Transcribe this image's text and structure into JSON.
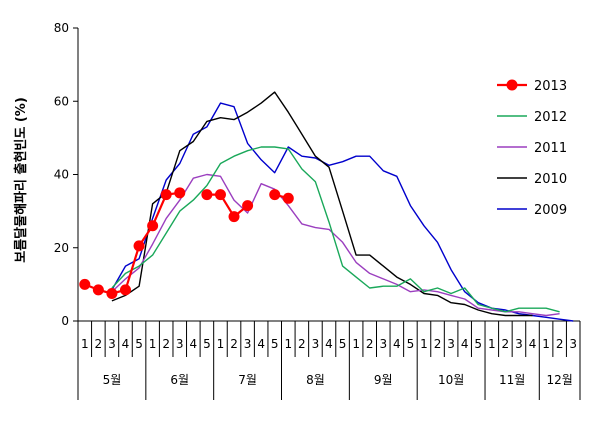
{
  "chart_data": {
    "type": "line",
    "title": "",
    "ylabel": "보름달물해파리 출현빈도 (%)",
    "ylim": [
      0,
      80
    ],
    "yticks": [
      0,
      20,
      40,
      60,
      80
    ],
    "grid": false,
    "legend_position": "right",
    "week_labels": [
      "1",
      "2",
      "3",
      "4",
      "5",
      "1",
      "2",
      "3",
      "4",
      "5",
      "1",
      "2",
      "3",
      "4",
      "5",
      "1",
      "2",
      "3",
      "4",
      "5",
      "1",
      "2",
      "3",
      "4",
      "5",
      "1",
      "2",
      "3",
      "4",
      "5",
      "1",
      "2",
      "3",
      "4",
      "1",
      "2",
      "3"
    ],
    "month_groups": [
      {
        "label": "5월",
        "weeks": 5
      },
      {
        "label": "6월",
        "weeks": 5
      },
      {
        "label": "7월",
        "weeks": 5
      },
      {
        "label": "8월",
        "weeks": 5
      },
      {
        "label": "9월",
        "weeks": 5
      },
      {
        "label": "10월",
        "weeks": 5
      },
      {
        "label": "11월",
        "weeks": 4
      },
      {
        "label": "12월",
        "weeks": 3
      }
    ],
    "series": [
      {
        "name": "2013",
        "color": "#ff0000",
        "marker": "circle",
        "values": [
          10,
          8.5,
          7.5,
          8.5,
          20.5,
          26,
          34.5,
          35,
          null,
          34.5,
          34.5,
          28.5,
          31.5,
          null,
          34.5,
          33.5
        ]
      },
      {
        "name": "2012",
        "color": "#1aa85a",
        "marker": "none",
        "values": [
          null,
          null,
          9,
          13,
          15,
          18,
          24,
          30,
          33,
          37,
          43,
          45,
          46.5,
          47.5,
          47.5,
          47,
          41.5,
          38,
          27,
          15,
          12,
          9,
          9.5,
          9.5,
          11.5,
          8,
          9,
          7.5,
          9,
          4.5,
          3.5,
          2.5,
          3.5,
          3.5,
          3.5,
          2.5
        ]
      },
      {
        "name": "2011",
        "color": "#9b3fbf",
        "marker": "none",
        "values": [
          null,
          null,
          8,
          11.5,
          14.5,
          21,
          28,
          33,
          39,
          40,
          39.5,
          33,
          29.5,
          37.5,
          36,
          31.5,
          26.5,
          25.5,
          25,
          21.5,
          16,
          13,
          11.5,
          10,
          8,
          8.5,
          8,
          7,
          6,
          3.5,
          3,
          2.5,
          2.5,
          2,
          1.5,
          2
        ]
      },
      {
        "name": "2010",
        "color": "#000000",
        "marker": "none",
        "values": [
          null,
          null,
          5.5,
          7,
          9.5,
          32,
          35,
          46.5,
          49,
          54.5,
          55.5,
          55,
          57,
          59.5,
          62.5,
          57,
          51,
          45,
          42,
          30,
          18,
          18,
          15,
          12,
          10,
          7.5,
          7,
          5,
          4.5,
          3,
          2,
          1.5,
          1.5,
          1.5
        ]
      },
      {
        "name": "2009",
        "color": "#0000cc",
        "marker": "none",
        "values": [
          null,
          null,
          8.5,
          15,
          17,
          28,
          38.5,
          43,
          51,
          53,
          59.5,
          58.5,
          48.5,
          44,
          40.5,
          47.5,
          45,
          44.5,
          42.5,
          43.5,
          45,
          45,
          41,
          39.5,
          31.5,
          26,
          21.5,
          14,
          8,
          5,
          3.5,
          3,
          2,
          1.5,
          1,
          0.5,
          0
        ]
      }
    ]
  }
}
